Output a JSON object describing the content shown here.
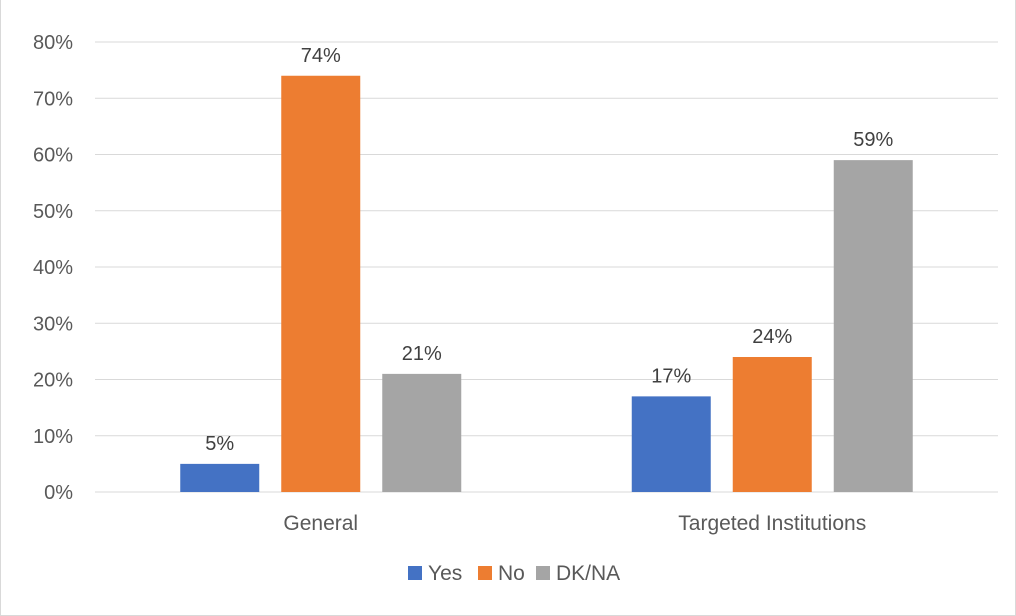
{
  "chart_data": {
    "type": "bar",
    "categories": [
      "General",
      "Targeted Institutions"
    ],
    "series": [
      {
        "name": "Yes",
        "color": "#4472c4",
        "values": [
          5,
          17
        ],
        "labels": [
          "5%",
          "17%"
        ]
      },
      {
        "name": "No",
        "color": "#ed7d31",
        "values": [
          74,
          24
        ],
        "labels": [
          "74%",
          "24%"
        ]
      },
      {
        "name": "DK/NA",
        "color": "#a5a5a5",
        "values": [
          21,
          59
        ],
        "labels": [
          "21%",
          "59%"
        ]
      }
    ],
    "ylim": [
      0,
      80
    ],
    "yticks": [
      "0%",
      "10%",
      "20%",
      "30%",
      "40%",
      "50%",
      "60%",
      "70%",
      "80%"
    ],
    "grid": true,
    "legend_position": "bottom"
  }
}
